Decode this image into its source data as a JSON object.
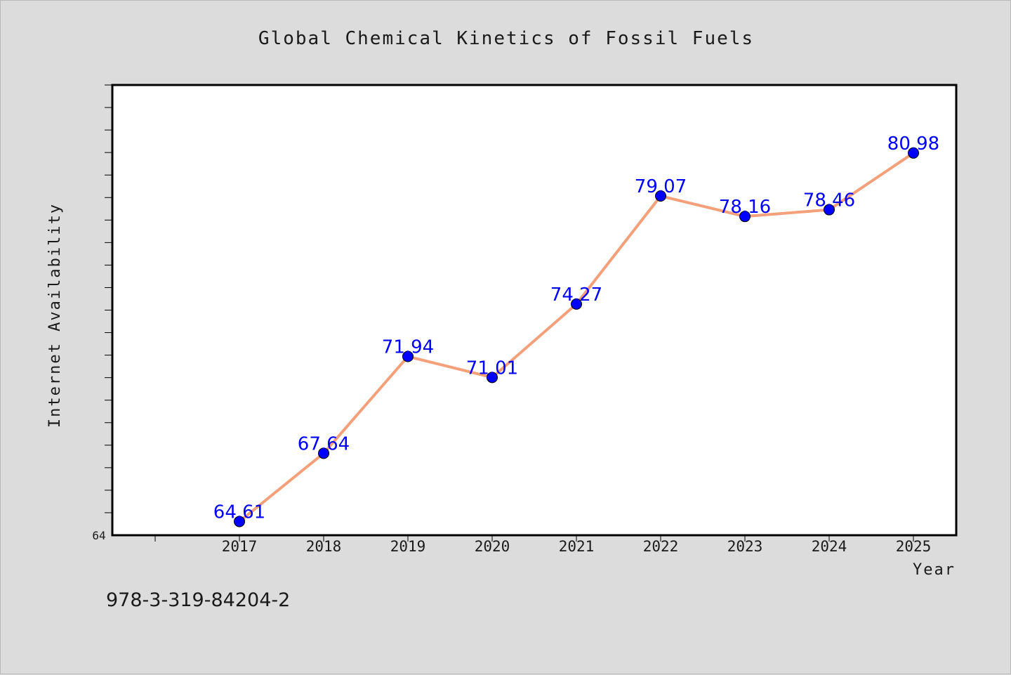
{
  "chart_data": {
    "type": "line",
    "title": "Global Chemical Kinetics of Fossil Fuels",
    "xlabel": "Year",
    "ylabel": "Internet Availability",
    "categories": [
      "2017",
      "2018",
      "2019",
      "2020",
      "2021",
      "2022",
      "2023",
      "2024",
      "2025"
    ],
    "series": [
      {
        "values": [
          64.61,
          67.64,
          71.94,
          71.01,
          74.27,
          79.07,
          78.16,
          78.46,
          80.98
        ],
        "labels": [
          "64.61",
          "67.64",
          "71.94",
          "71.01",
          "74.27",
          "79.07",
          "78.16",
          "78.46",
          "80.98"
        ]
      }
    ],
    "ylim": [
      64,
      84
    ],
    "y_tick_labels": [
      "64"
    ],
    "grid": false,
    "line_color": "#f4a07a",
    "marker_color": "#0000ff",
    "label_color": "#0000ff"
  },
  "footer": {
    "isbn": "978-3-319-84204-2"
  }
}
